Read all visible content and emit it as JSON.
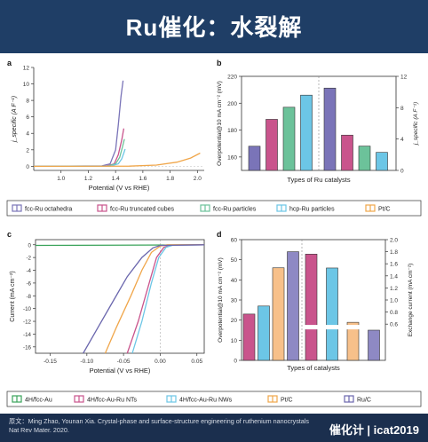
{
  "page_title": "Ru催化：水裂解",
  "footer": {
    "source": "原文：Ming Zhao, Younan Xia. Crystal-phase and surface-structure engineering of ruthenium nanocrystals Nat Rev Mater. 2020.",
    "brand": "催化计 | icat2019"
  },
  "colors": {
    "fcc_octa": "#7a74b8",
    "fcc_cubes": "#c9548c",
    "fcc_particles": "#6cc29a",
    "hcp_particles": "#6cc6e6",
    "pt_c": "#f0a64a",
    "au": "#3aa35a",
    "au_ru_nts": "#c9548c",
    "au_ru_nws": "#6cc6e6",
    "ru_c": "#6a66ad",
    "bar_ptc": "#f7c08a",
    "bar_ruc": "#8e89c4"
  },
  "chart_data": [
    {
      "panel": "a",
      "type": "line",
      "xlabel": "Potential (V vs RHE)",
      "ylabel": "j_specific (A F⁻¹)",
      "xlim": [
        0.8,
        2.05
      ],
      "ylim": [
        -0.5,
        12
      ],
      "xticks": [
        "1.0",
        "1.2",
        "1.4",
        "1.6",
        "1.8",
        "2.0"
      ],
      "xtick_values": [
        1.0,
        1.2,
        1.4,
        1.6,
        1.8,
        2.0
      ],
      "yticks": [
        "0",
        "2",
        "4",
        "6",
        "8",
        "10",
        "12"
      ],
      "ytick_values": [
        0,
        2,
        4,
        6,
        8,
        10,
        12
      ],
      "series": [
        {
          "name": "fcc-Ru octahedra",
          "color": "#7a74b8",
          "points": [
            [
              0.8,
              0
            ],
            [
              1.3,
              0.05
            ],
            [
              1.36,
              0.3
            ],
            [
              1.4,
              2
            ],
            [
              1.42,
              5
            ],
            [
              1.44,
              8.5
            ],
            [
              1.455,
              10.4
            ]
          ]
        },
        {
          "name": "fcc-Ru truncated cubes",
          "color": "#c9548c",
          "points": [
            [
              0.8,
              0
            ],
            [
              1.33,
              0.03
            ],
            [
              1.39,
              0.3
            ],
            [
              1.42,
              1.4
            ],
            [
              1.445,
              3.2
            ],
            [
              1.46,
              4.6
            ]
          ]
        },
        {
          "name": "fcc-Ru particles",
          "color": "#6cc29a",
          "points": [
            [
              0.8,
              0
            ],
            [
              1.34,
              0.03
            ],
            [
              1.4,
              0.3
            ],
            [
              1.43,
              1.1
            ],
            [
              1.45,
              2.3
            ],
            [
              1.465,
              3.3
            ]
          ]
        },
        {
          "name": "hcp-Ru particles",
          "color": "#6cc6e6",
          "points": [
            [
              0.8,
              0
            ],
            [
              1.36,
              0.02
            ],
            [
              1.42,
              0.3
            ],
            [
              1.445,
              0.9
            ],
            [
              1.46,
              1.6
            ],
            [
              1.47,
              2.1
            ]
          ]
        },
        {
          "name": "Pt/C",
          "color": "#f0a64a",
          "points": [
            [
              0.8,
              0
            ],
            [
              1.5,
              0.02
            ],
            [
              1.7,
              0.15
            ],
            [
              1.85,
              0.5
            ],
            [
              1.95,
              1.0
            ],
            [
              2.02,
              1.6
            ]
          ]
        }
      ]
    },
    {
      "panel": "b",
      "type": "bar",
      "xlabel": "Types of Ru catalysts",
      "ylabel_left": "Overpotential@10 mA cm⁻² (mV)",
      "ylabel_right": "j_specific (A F⁻¹)",
      "ylim_left": [
        150,
        220
      ],
      "ylim_right": [
        0,
        12
      ],
      "yticks_left": [
        "160",
        "180",
        "200",
        "220"
      ],
      "yticks_left_values": [
        160,
        180,
        200,
        220
      ],
      "yticks_right": [
        "0",
        "4",
        "8",
        "12"
      ],
      "yticks_right_values": [
        0,
        4,
        8,
        12
      ],
      "overpotential": [
        {
          "name": "fcc-Ru octahedra",
          "color": "#7a74b8",
          "value": 168
        },
        {
          "name": "fcc-Ru truncated cubes",
          "color": "#c9548c",
          "value": 188
        },
        {
          "name": "fcc-Ru particles",
          "color": "#6cc29a",
          "value": 197
        },
        {
          "name": "hcp-Ru particles",
          "color": "#6cc6e6",
          "value": 206
        }
      ],
      "j_specific": [
        {
          "name": "fcc-Ru octahedra",
          "color": "#7a74b8",
          "value": 10.5
        },
        {
          "name": "fcc-Ru truncated cubes",
          "color": "#c9548c",
          "value": 4.5
        },
        {
          "name": "fcc-Ru particles",
          "color": "#6cc29a",
          "value": 3.1
        },
        {
          "name": "hcp-Ru particles",
          "color": "#6cc6e6",
          "value": 2.3
        }
      ]
    },
    {
      "panel": "c",
      "type": "line",
      "xlabel": "Potential (V vs RHE)",
      "ylabel": "Current (mA cm⁻²)",
      "xlim": [
        -0.17,
        0.06
      ],
      "ylim": [
        -17,
        0.8
      ],
      "xticks": [
        "-0.15",
        "-0.10",
        "-0.05",
        "0.00",
        "0.05"
      ],
      "xtick_values": [
        -0.15,
        -0.1,
        -0.05,
        0.0,
        0.05
      ],
      "yticks": [
        "0",
        "-2",
        "-4",
        "-6",
        "-8",
        "-10",
        "-12",
        "-14",
        "-16"
      ],
      "ytick_values": [
        0,
        -2,
        -4,
        -6,
        -8,
        -10,
        -12,
        -14,
        -16
      ],
      "series": [
        {
          "name": "4H/fcc-Au",
          "color": "#3aa35a",
          "points": [
            [
              -0.17,
              -0.1
            ],
            [
              0.06,
              -0.02
            ]
          ]
        },
        {
          "name": "4H/fcc-Au-Ru NTs",
          "color": "#c9548c",
          "points": [
            [
              -0.045,
              -17
            ],
            [
              -0.03,
              -12
            ],
            [
              -0.015,
              -6
            ],
            [
              -0.005,
              -2
            ],
            [
              0.005,
              -0.4
            ],
            [
              0.015,
              -0.05
            ],
            [
              0.06,
              0
            ]
          ]
        },
        {
          "name": "4H/fcc-Au-Ru NWs",
          "color": "#6cc6e6",
          "points": [
            [
              -0.038,
              -17
            ],
            [
              -0.025,
              -12
            ],
            [
              -0.012,
              -6
            ],
            [
              -0.002,
              -2
            ],
            [
              0.008,
              -0.4
            ],
            [
              0.018,
              -0.05
            ],
            [
              0.06,
              0
            ]
          ]
        },
        {
          "name": "Pt/C",
          "color": "#f0a64a",
          "points": [
            [
              -0.075,
              -17
            ],
            [
              -0.06,
              -13
            ],
            [
              -0.04,
              -8
            ],
            [
              -0.025,
              -4
            ],
            [
              -0.012,
              -1.2
            ],
            [
              0.0,
              -0.2
            ],
            [
              0.01,
              0
            ],
            [
              0.06,
              0
            ]
          ]
        },
        {
          "name": "Ru/C",
          "color": "#6a66ad",
          "points": [
            [
              -0.105,
              -17
            ],
            [
              -0.085,
              -13
            ],
            [
              -0.065,
              -9
            ],
            [
              -0.045,
              -5
            ],
            [
              -0.025,
              -2
            ],
            [
              -0.01,
              -0.5
            ],
            [
              0.0,
              -0.1
            ],
            [
              0.06,
              0
            ]
          ]
        }
      ]
    },
    {
      "panel": "d",
      "type": "bar",
      "xlabel": "Types of catalysts",
      "ylabel_left": "Overpotential@10 mA cm⁻² (mV)",
      "ylabel_right": "Exchange current (mA cm⁻²)",
      "ylim_left": [
        0,
        60
      ],
      "ylim_right": [
        0,
        2.0
      ],
      "yticks_left": [
        "0",
        "10",
        "20",
        "30",
        "40",
        "50",
        "60"
      ],
      "yticks_left_values": [
        0,
        10,
        20,
        30,
        40,
        50,
        60
      ],
      "yticks_right": [
        "0.6",
        "0.8",
        "1.0",
        "1.2",
        "1.4",
        "1.6",
        "1.8",
        "2.0"
      ],
      "yticks_right_values": [
        0.6,
        0.8,
        1.0,
        1.2,
        1.4,
        1.6,
        1.8,
        2.0
      ],
      "overpotential": [
        {
          "name": "4H/fcc-Au-Ru NTs",
          "color": "#c9548c",
          "value": 23
        },
        {
          "name": "4H/fcc-Au-Ru NWs",
          "color": "#6cc6e6",
          "value": 27
        },
        {
          "name": "Pt/C",
          "color": "#f7c08a",
          "value": 46
        },
        {
          "name": "Ru/C",
          "color": "#8e89c4",
          "value": 54
        }
      ],
      "exchange_current": [
        {
          "name": "4H/fcc-Au-Ru NTs",
          "color": "#c9548c",
          "value": 1.76
        },
        {
          "name": "4H/fcc-Au-Ru NWs",
          "color": "#6cc6e6",
          "value": 1.53
        },
        {
          "name": "Pt/C",
          "color": "#f7c08a",
          "value": 0.63
        },
        {
          "name": "Ru/C",
          "color": "#8e89c4",
          "value": 0.5
        }
      ]
    }
  ],
  "legend_top": [
    {
      "name": "fcc-Ru octahedra",
      "color": "#7a74b8"
    },
    {
      "name": "fcc-Ru truncated cubes",
      "color": "#c9548c"
    },
    {
      "name": "fcc-Ru particles",
      "color": "#6cc29a"
    },
    {
      "name": "hcp-Ru particles",
      "color": "#6cc6e6"
    },
    {
      "name": "Pt/C",
      "color": "#f0a64a"
    }
  ],
  "legend_bottom": [
    {
      "name": "4H/fcc-Au",
      "color": "#3aa35a"
    },
    {
      "name": "4H/fcc-Au-Ru NTs",
      "color": "#c9548c"
    },
    {
      "name": "4H/fcc-Au-Ru NWs",
      "color": "#6cc6e6"
    },
    {
      "name": "Pt/C",
      "color": "#f0a64a"
    },
    {
      "name": "Ru/C",
      "color": "#6a66ad"
    }
  ]
}
